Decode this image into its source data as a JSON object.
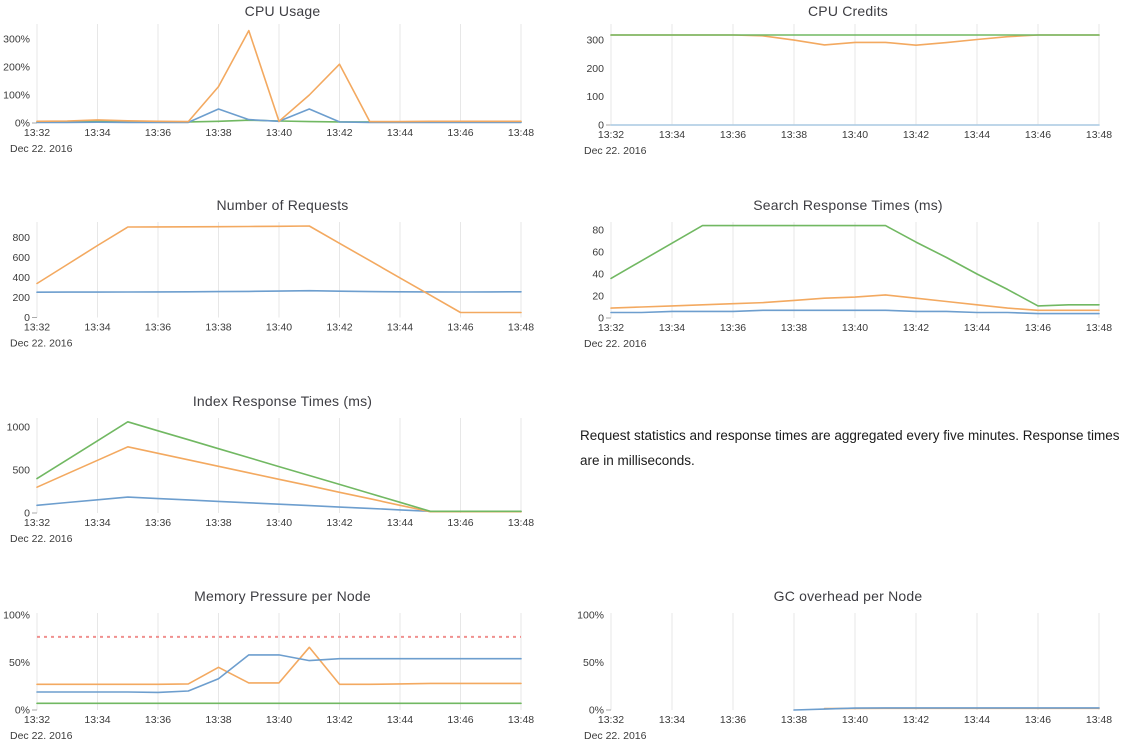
{
  "page": {
    "note": "Request statistics and response times are aggregated every five minutes. Response times are in milliseconds.",
    "date_label": "Dec 22. 2016",
    "colors": {
      "blue": "#6d9ece",
      "pale_blue": "#a9c9e2",
      "orange": "#f3a960",
      "green": "#71b862",
      "red_dashed": "#f0908f",
      "grid": "#e7e7e7",
      "text": "#3b3b3b"
    }
  },
  "chart_data": [
    {
      "id": "cpu-usage",
      "type": "line",
      "title": "CPU Usage",
      "xlabel": "Dec 22. 2016",
      "ylabel": "",
      "ylim": [
        0,
        350
      ],
      "grid": "vertical",
      "legend": "none",
      "x_ticks": [
        "13:32",
        "13:34",
        "13:36",
        "13:38",
        "13:40",
        "13:42",
        "13:44",
        "13:46",
        "13:48"
      ],
      "yticks": [
        {
          "v": 0,
          "label": "0%"
        },
        {
          "v": 100,
          "label": "100%"
        },
        {
          "v": 200,
          "label": "200%"
        },
        {
          "v": 300,
          "label": "300%"
        }
      ],
      "series": [
        {
          "name": "green",
          "color": "#71b862",
          "values": [
            4,
            4,
            6,
            5,
            4,
            4,
            6,
            10,
            7,
            5,
            4,
            4,
            4,
            4,
            4,
            4,
            4
          ]
        },
        {
          "name": "blue",
          "color": "#6d9ece",
          "values": [
            2,
            2,
            3,
            2,
            2,
            2,
            50,
            12,
            6,
            50,
            4,
            2,
            2,
            2,
            2,
            2,
            2
          ]
        },
        {
          "name": "orange",
          "color": "#f3a960",
          "values": [
            6,
            7,
            11,
            8,
            6,
            5,
            130,
            330,
            6,
            100,
            210,
            5,
            5,
            6,
            6,
            6,
            6
          ]
        }
      ]
    },
    {
      "id": "cpu-credits",
      "type": "line",
      "title": "CPU Credits",
      "xlabel": "Dec 22. 2016",
      "ylabel": "",
      "ylim": [
        0,
        350
      ],
      "grid": "vertical",
      "legend": "none",
      "x_ticks": [
        "13:32",
        "13:34",
        "13:36",
        "13:38",
        "13:40",
        "13:42",
        "13:44",
        "13:46",
        "13:48"
      ],
      "yticks": [
        {
          "v": 0,
          "label": "0"
        },
        {
          "v": 100,
          "label": "100"
        },
        {
          "v": 200,
          "label": "200"
        },
        {
          "v": 300,
          "label": "300"
        }
      ],
      "series": [
        {
          "name": "blue",
          "color": "#a9c9e2",
          "values": [
            0,
            0,
            0,
            0,
            0,
            0,
            0,
            0,
            0,
            0,
            0,
            0,
            0,
            0,
            0,
            0,
            0
          ]
        },
        {
          "name": "orange",
          "color": "#f3a960",
          "values": [
            318,
            318,
            318,
            318,
            318,
            315,
            300,
            283,
            292,
            292,
            282,
            291,
            302,
            312,
            318,
            318,
            318
          ]
        },
        {
          "name": "green",
          "color": "#71b862",
          "values": [
            318,
            318,
            318,
            318,
            318,
            318,
            318,
            318,
            318,
            318,
            318,
            318,
            318,
            318,
            318,
            318,
            318
          ]
        }
      ]
    },
    {
      "id": "number-of-requests",
      "type": "line",
      "title": "Number of Requests",
      "xlabel": "Dec 22. 2016",
      "ylabel": "",
      "ylim": [
        0,
        950
      ],
      "grid": "vertical",
      "legend": "none",
      "x_ticks": [
        "13:32",
        "13:34",
        "13:36",
        "13:38",
        "13:40",
        "13:42",
        "13:44",
        "13:46",
        "13:48"
      ],
      "yticks": [
        {
          "v": 0,
          "label": "0"
        },
        {
          "v": 200,
          "label": "200"
        },
        {
          "v": 400,
          "label": "400"
        },
        {
          "v": 600,
          "label": "600"
        },
        {
          "v": 800,
          "label": "800"
        }
      ],
      "series": [
        {
          "name": "blue",
          "color": "#6d9ece",
          "values": [
            253,
            254,
            254,
            255,
            256,
            257,
            259,
            261,
            264,
            268,
            263,
            259,
            257,
            256,
            255,
            256,
            257
          ]
        },
        {
          "name": "orange",
          "color": "#f3a960",
          "values": [
            340,
            530,
            720,
            905,
            906,
            907,
            908,
            910,
            912,
            915,
            742,
            569,
            396,
            223,
            50,
            50,
            50
          ]
        }
      ]
    },
    {
      "id": "search-response-times",
      "type": "line",
      "title": "Search Response Times (ms)",
      "xlabel": "Dec 22. 2016",
      "ylabel": "",
      "ylim": [
        0,
        86
      ],
      "grid": "vertical",
      "legend": "none",
      "x_ticks": [
        "13:32",
        "13:34",
        "13:36",
        "13:38",
        "13:40",
        "13:42",
        "13:44",
        "13:46",
        "13:48"
      ],
      "yticks": [
        {
          "v": 0,
          "label": "0"
        },
        {
          "v": 20,
          "label": "20"
        },
        {
          "v": 40,
          "label": "40"
        },
        {
          "v": 60,
          "label": "60"
        },
        {
          "v": 80,
          "label": "80"
        }
      ],
      "series": [
        {
          "name": "blue",
          "color": "#6d9ece",
          "values": [
            5,
            5,
            6,
            6,
            6,
            7,
            7,
            7,
            7,
            7,
            6,
            6,
            5,
            5,
            4,
            4,
            4
          ]
        },
        {
          "name": "orange",
          "color": "#f3a960",
          "values": [
            9,
            10,
            11,
            12,
            13,
            14,
            16,
            18,
            19,
            21,
            18,
            15,
            12,
            9,
            7,
            7,
            7
          ]
        },
        {
          "name": "green",
          "color": "#71b862",
          "values": [
            36,
            52,
            68,
            84,
            84,
            84,
            84,
            84,
            84,
            84,
            69,
            55,
            40,
            26,
            11,
            12,
            12
          ]
        }
      ]
    },
    {
      "id": "index-response-times",
      "type": "line",
      "title": "Index Response Times (ms)",
      "xlabel": "Dec 22. 2016",
      "ylabel": "",
      "ylim": [
        0,
        1100
      ],
      "grid": "vertical",
      "legend": "none",
      "x_ticks": [
        "13:32",
        "13:34",
        "13:36",
        "13:38",
        "13:40",
        "13:42",
        "13:44",
        "13:46",
        "13:48"
      ],
      "yticks": [
        {
          "v": 0,
          "label": "0"
        },
        {
          "v": 500,
          "label": "500"
        },
        {
          "v": 1000,
          "label": "1000"
        }
      ],
      "series": [
        {
          "name": "blue",
          "color": "#6d9ece",
          "values": [
            90,
            122,
            154,
            185,
            168,
            152,
            135,
            119,
            102,
            86,
            69,
            53,
            36,
            20,
            20,
            20,
            20
          ]
        },
        {
          "name": "orange",
          "color": "#f3a960",
          "values": [
            300,
            457,
            613,
            770,
            694,
            619,
            543,
            468,
            392,
            317,
            241,
            166,
            90,
            15,
            15,
            15,
            15
          ]
        },
        {
          "name": "green",
          "color": "#71b862",
          "values": [
            400,
            620,
            840,
            1060,
            956,
            852,
            748,
            644,
            540,
            436,
            332,
            228,
            124,
            20,
            20,
            20,
            20
          ]
        }
      ]
    },
    {
      "id": "memory-pressure",
      "type": "line",
      "title": "Memory Pressure per Node",
      "xlabel": "Dec 22. 2016",
      "ylabel": "",
      "ylim": [
        0,
        100
      ],
      "grid": "vertical",
      "legend": "none",
      "x_ticks": [
        "13:32",
        "13:34",
        "13:36",
        "13:38",
        "13:40",
        "13:42",
        "13:44",
        "13:46",
        "13:48"
      ],
      "yticks": [
        {
          "v": 0,
          "label": "0%"
        },
        {
          "v": 50,
          "label": "50%"
        },
        {
          "v": 100,
          "label": "100%"
        }
      ],
      "threshold": {
        "value": 77,
        "color": "#f0908f",
        "style": "dashed"
      },
      "series": [
        {
          "name": "green",
          "color": "#71b862",
          "values": [
            7,
            7,
            7,
            7,
            7,
            7,
            7,
            7,
            7,
            7,
            7,
            7,
            7,
            7,
            7,
            7,
            7
          ]
        },
        {
          "name": "orange",
          "color": "#f3a960",
          "values": [
            27,
            27,
            27,
            27,
            27,
            27.5,
            45,
            28.5,
            28.5,
            66,
            27,
            27,
            27.5,
            28,
            28,
            28,
            28
          ]
        },
        {
          "name": "blue",
          "color": "#6d9ece",
          "values": [
            19,
            19,
            19,
            19,
            18.5,
            20,
            33,
            58,
            58,
            52,
            54,
            54,
            54,
            54,
            54,
            54,
            54
          ]
        }
      ]
    },
    {
      "id": "gc-overhead",
      "type": "line",
      "title": "GC overhead per Node",
      "xlabel": "Dec 22. 2016",
      "ylabel": "",
      "ylim": [
        0,
        100
      ],
      "grid": "vertical",
      "legend": "none",
      "x_ticks": [
        "13:32",
        "13:34",
        "13:36",
        "13:38",
        "13:40",
        "13:42",
        "13:44",
        "13:46",
        "13:48"
      ],
      "yticks": [
        {
          "v": 0,
          "label": "0%"
        },
        {
          "v": 50,
          "label": "50%"
        },
        {
          "v": 100,
          "label": "100%"
        }
      ],
      "series": [
        {
          "name": "orange",
          "color": "#f3a960",
          "values": [
            null,
            null,
            null,
            null,
            null,
            null,
            null,
            1.5,
            1.7,
            1.8,
            1.8,
            1.8,
            1.8,
            1.8,
            1.8,
            1.8,
            1.8
          ]
        },
        {
          "name": "blue",
          "color": "#6d9ece",
          "values": [
            null,
            null,
            null,
            null,
            null,
            null,
            0,
            1,
            2,
            2.2,
            2.2,
            2.2,
            2.2,
            2.2,
            2.2,
            2.2,
            2.2
          ]
        }
      ]
    }
  ]
}
